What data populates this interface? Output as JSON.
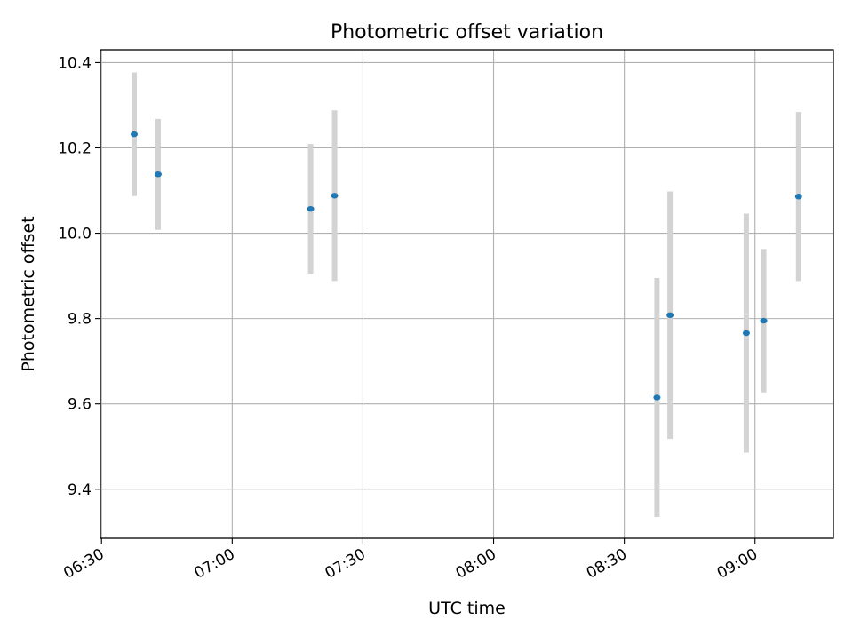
{
  "chart_data": {
    "type": "scatter",
    "title": "Photometric offset variation",
    "xlabel": "UTC time",
    "ylabel": "Photometric offset",
    "xlim": [
      "06:29:45",
      "09:18:00"
    ],
    "ylim": [
      9.285,
      10.43
    ],
    "x_ticks": [
      "06:30",
      "07:00",
      "07:30",
      "08:00",
      "08:30",
      "09:00"
    ],
    "y_ticks": [
      9.4,
      9.6,
      9.8,
      10.0,
      10.2,
      10.4
    ],
    "y_tick_labels": [
      "9.4",
      "9.6",
      "9.8",
      "10.0",
      "10.2",
      "10.4"
    ],
    "grid": true,
    "legend": null,
    "colors": {
      "point": "#1f77b4",
      "errorbar": "#d3d3d3",
      "grid": "#b0b0b0"
    },
    "points": [
      {
        "time": "06:37:30",
        "y": 10.232,
        "err": 0.145
      },
      {
        "time": "06:43:00",
        "y": 10.138,
        "err": 0.13
      },
      {
        "time": "07:18:00",
        "y": 10.057,
        "err": 0.152
      },
      {
        "time": "07:23:30",
        "y": 10.088,
        "err": 0.2
      },
      {
        "time": "08:37:30",
        "y": 9.615,
        "err": 0.28
      },
      {
        "time": "08:40:30",
        "y": 9.808,
        "err": 0.29
      },
      {
        "time": "08:58:00",
        "y": 9.766,
        "err": 0.28
      },
      {
        "time": "09:02:00",
        "y": 9.795,
        "err": 0.168
      },
      {
        "time": "09:10:00",
        "y": 10.086,
        "err": 0.198
      }
    ]
  }
}
